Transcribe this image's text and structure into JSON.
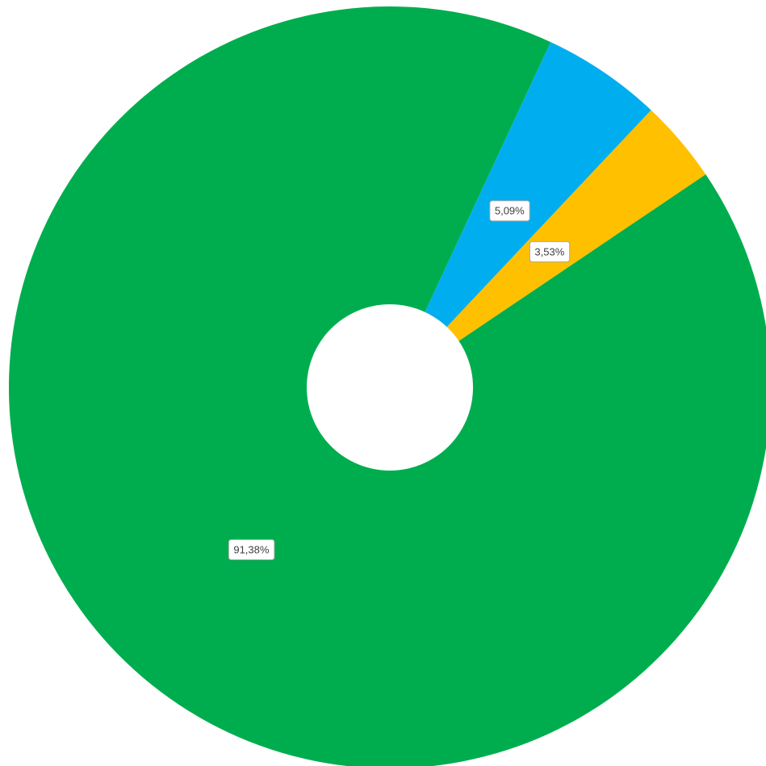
{
  "chart_data": {
    "type": "pie",
    "style": "donut",
    "slices": [
      {
        "value": 91.38,
        "label": "91,38%",
        "color": "#00AD4E"
      },
      {
        "value": 5.09,
        "label": "5,09%",
        "color": "#00AEEF"
      },
      {
        "value": 3.53,
        "label": "3,53%",
        "color": "#FFC000"
      }
    ],
    "legend": "none",
    "title": ""
  }
}
